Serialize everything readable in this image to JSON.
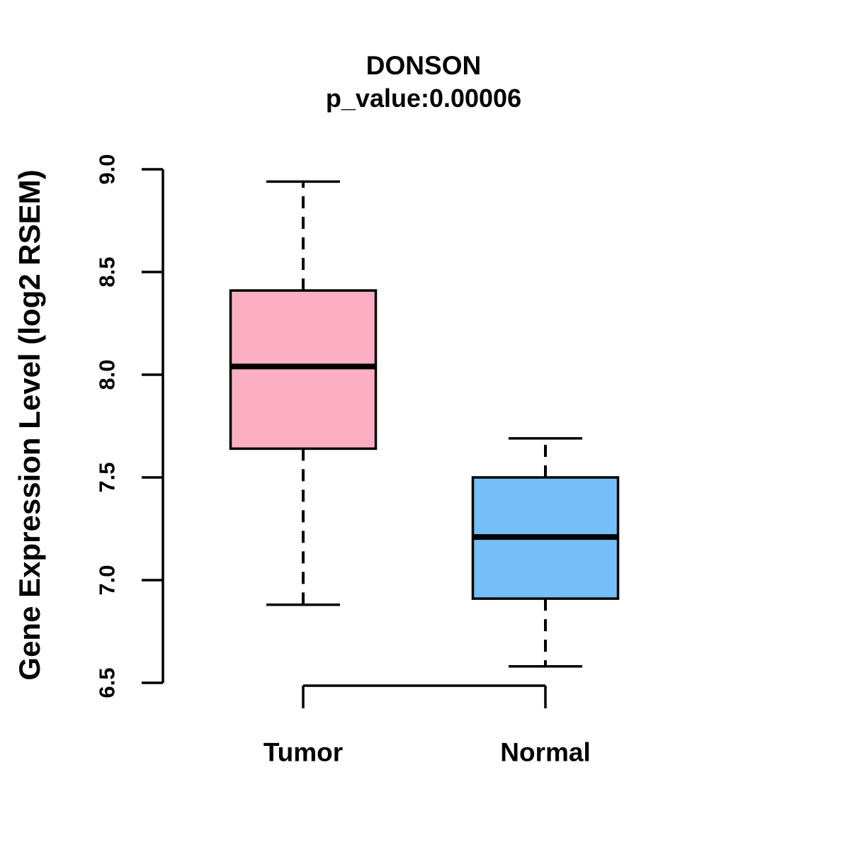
{
  "figure": {
    "title": "DONSON",
    "subtitle": "p_value:0.00006",
    "ylabel": "Gene Expression Level (log2 RSEM)"
  },
  "chart_data": {
    "type": "boxplot",
    "title": "DONSON",
    "subtitle": "p_value:0.00006",
    "xlabel": "",
    "ylabel": "Gene Expression Level (log2 RSEM)",
    "ylim": [
      6.5,
      9.0
    ],
    "yticks": [
      6.5,
      7.0,
      7.5,
      8.0,
      8.5,
      9.0
    ],
    "ytick_labels": [
      "6.5",
      "7.0",
      "7.5",
      "8.0",
      "8.5",
      "9.0"
    ],
    "grid": false,
    "legend": "none",
    "groups": [
      {
        "label": "Tumor",
        "box_color": "#FCAFC3",
        "border_color": "#000000",
        "whisker_low": 6.88,
        "q1": 7.64,
        "median": 8.04,
        "q3": 8.41,
        "whisker_high": 8.94,
        "outliers": []
      },
      {
        "label": "Normal",
        "box_color": "#74BFF7",
        "border_color": "#000000",
        "whisker_low": 6.58,
        "q1": 6.91,
        "median": 7.21,
        "q3": 7.5,
        "whisker_high": 7.69,
        "outliers": []
      }
    ]
  },
  "colors": {
    "tumor_fill": "#FCAFC3",
    "normal_fill": "#74BFF7",
    "line": "#000000",
    "background": "#FFFFFF"
  }
}
